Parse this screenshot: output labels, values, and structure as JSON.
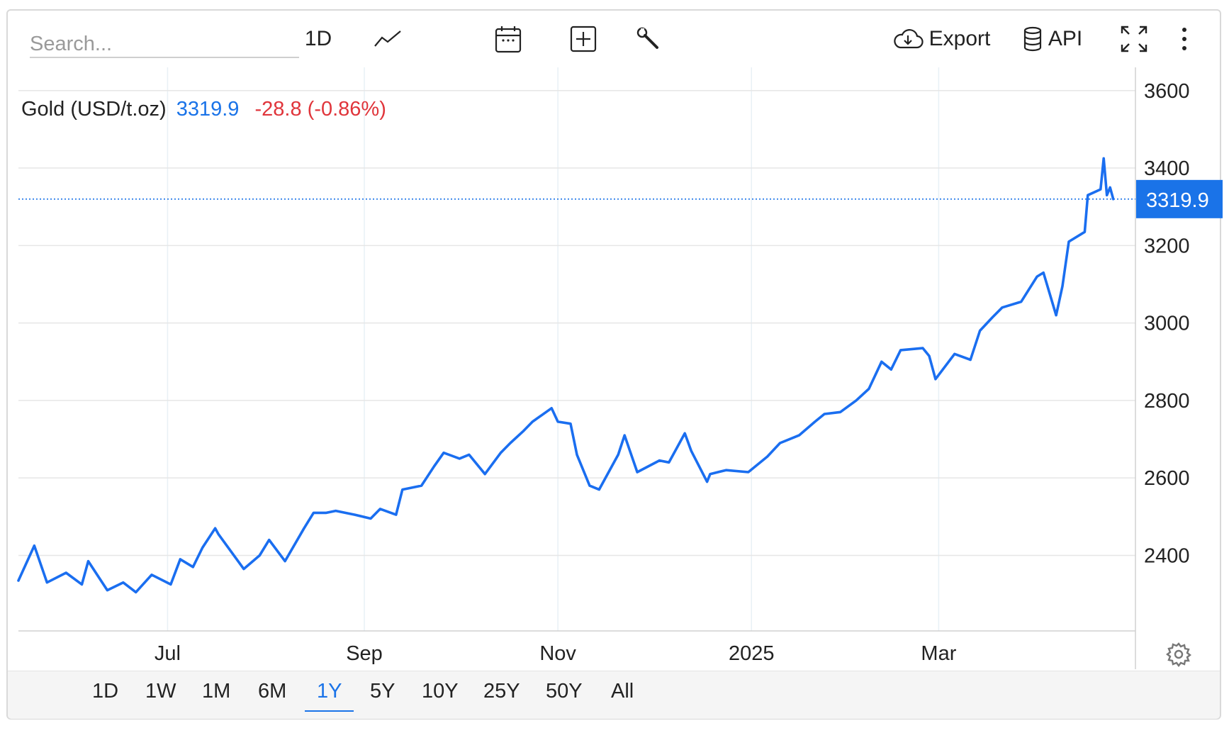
{
  "search": {
    "placeholder": "Search..."
  },
  "toolbar": {
    "interval_label": "1D",
    "chart_type_icon": "line-chart-icon",
    "calendar_icon": "calendar-icon",
    "compare_icon": "plus-square-icon",
    "tools_icon": "wrench-icon",
    "export_label": "Export",
    "export_icon": "cloud-download-icon",
    "api_label": "API",
    "api_icon": "database-icon",
    "fullscreen_icon": "fullscreen-icon",
    "more_icon": "more-vertical-icon"
  },
  "legend": {
    "name": "Gold (USD/t.oz)",
    "price": "3319.9",
    "change": "-28.8 (-0.86%)"
  },
  "settings_icon": "gear-icon",
  "periods": [
    "1D",
    "1W",
    "1M",
    "6M",
    "1Y",
    "5Y",
    "10Y",
    "25Y",
    "50Y",
    "All"
  ],
  "active_period": "1Y",
  "colors": {
    "line": "#1a6ef0",
    "price_badge": "#1a73e8",
    "change_negative": "#e0353b",
    "grid": "#e6e6e6"
  },
  "chart_data": {
    "type": "line",
    "title": "",
    "series": [
      {
        "name": "Gold (USD/t.oz)",
        "x": [
          "2024-05-15",
          "2024-05-20",
          "2024-05-24",
          "2024-05-30",
          "2024-06-04",
          "2024-06-06",
          "2024-06-12",
          "2024-06-17",
          "2024-06-21",
          "2024-06-26",
          "2024-07-02",
          "2024-07-05",
          "2024-07-09",
          "2024-07-12",
          "2024-07-16",
          "2024-07-17",
          "2024-07-25",
          "2024-07-30",
          "2024-08-02",
          "2024-08-07",
          "2024-08-13",
          "2024-08-16",
          "2024-08-20",
          "2024-08-23",
          "2024-08-29",
          "2024-09-03",
          "2024-09-06",
          "2024-09-11",
          "2024-09-13",
          "2024-09-19",
          "2024-09-23",
          "2024-09-26",
          "2024-10-01",
          "2024-10-04",
          "2024-10-09",
          "2024-10-14",
          "2024-10-17",
          "2024-10-21",
          "2024-10-24",
          "2024-10-30",
          "2024-11-01",
          "2024-11-05",
          "2024-11-07",
          "2024-11-11",
          "2024-11-14",
          "2024-11-20",
          "2024-11-22",
          "2024-11-26",
          "2024-12-03",
          "2024-12-06",
          "2024-12-11",
          "2024-12-13",
          "2024-12-18",
          "2024-12-19",
          "2024-12-24",
          "2024-12-31",
          "2025-01-06",
          "2025-01-10",
          "2025-01-16",
          "2025-01-21",
          "2025-01-24",
          "2025-01-29",
          "2025-02-03",
          "2025-02-07",
          "2025-02-11",
          "2025-02-14",
          "2025-02-17",
          "2025-02-24",
          "2025-02-26",
          "2025-02-28",
          "2025-03-06",
          "2025-03-11",
          "2025-03-14",
          "2025-03-18",
          "2025-03-21",
          "2025-03-27",
          "2025-04-01",
          "2025-04-03",
          "2025-04-07",
          "2025-04-09",
          "2025-04-11",
          "2025-04-16",
          "2025-04-17",
          "2025-04-21",
          "2025-04-22",
          "2025-04-23",
          "2025-04-24",
          "2025-04-25"
        ],
        "y": [
          2335,
          2425,
          2330,
          2355,
          2325,
          2385,
          2310,
          2330,
          2305,
          2350,
          2325,
          2390,
          2370,
          2420,
          2470,
          2455,
          2365,
          2400,
          2440,
          2385,
          2470,
          2510,
          2510,
          2515,
          2505,
          2495,
          2520,
          2505,
          2570,
          2580,
          2630,
          2665,
          2650,
          2660,
          2610,
          2665,
          2690,
          2720,
          2745,
          2780,
          2745,
          2740,
          2660,
          2580,
          2570,
          2660,
          2710,
          2615,
          2645,
          2640,
          2715,
          2670,
          2590,
          2610,
          2620,
          2615,
          2655,
          2690,
          2710,
          2745,
          2765,
          2770,
          2800,
          2830,
          2900,
          2880,
          2930,
          2935,
          2915,
          2855,
          2920,
          2905,
          2980,
          3015,
          3040,
          3055,
          3120,
          3130,
          3020,
          3095,
          3210,
          3235,
          3330,
          3345,
          3425,
          3330,
          3350,
          3319.9
        ]
      }
    ],
    "xlabel": "",
    "ylabel": "",
    "x_ticks": [
      "Jul",
      "Sep",
      "Nov",
      "2025",
      "Mar"
    ],
    "y_ticks": [
      2400,
      2600,
      2800,
      3000,
      3200,
      3400,
      3600
    ],
    "ylim": [
      2205,
      3660
    ],
    "xlim": [
      "2024-05-15",
      "2025-05-02"
    ],
    "last_value": "3319.9",
    "grid": true,
    "legend": "top-left",
    "y_axis_position": "right"
  }
}
